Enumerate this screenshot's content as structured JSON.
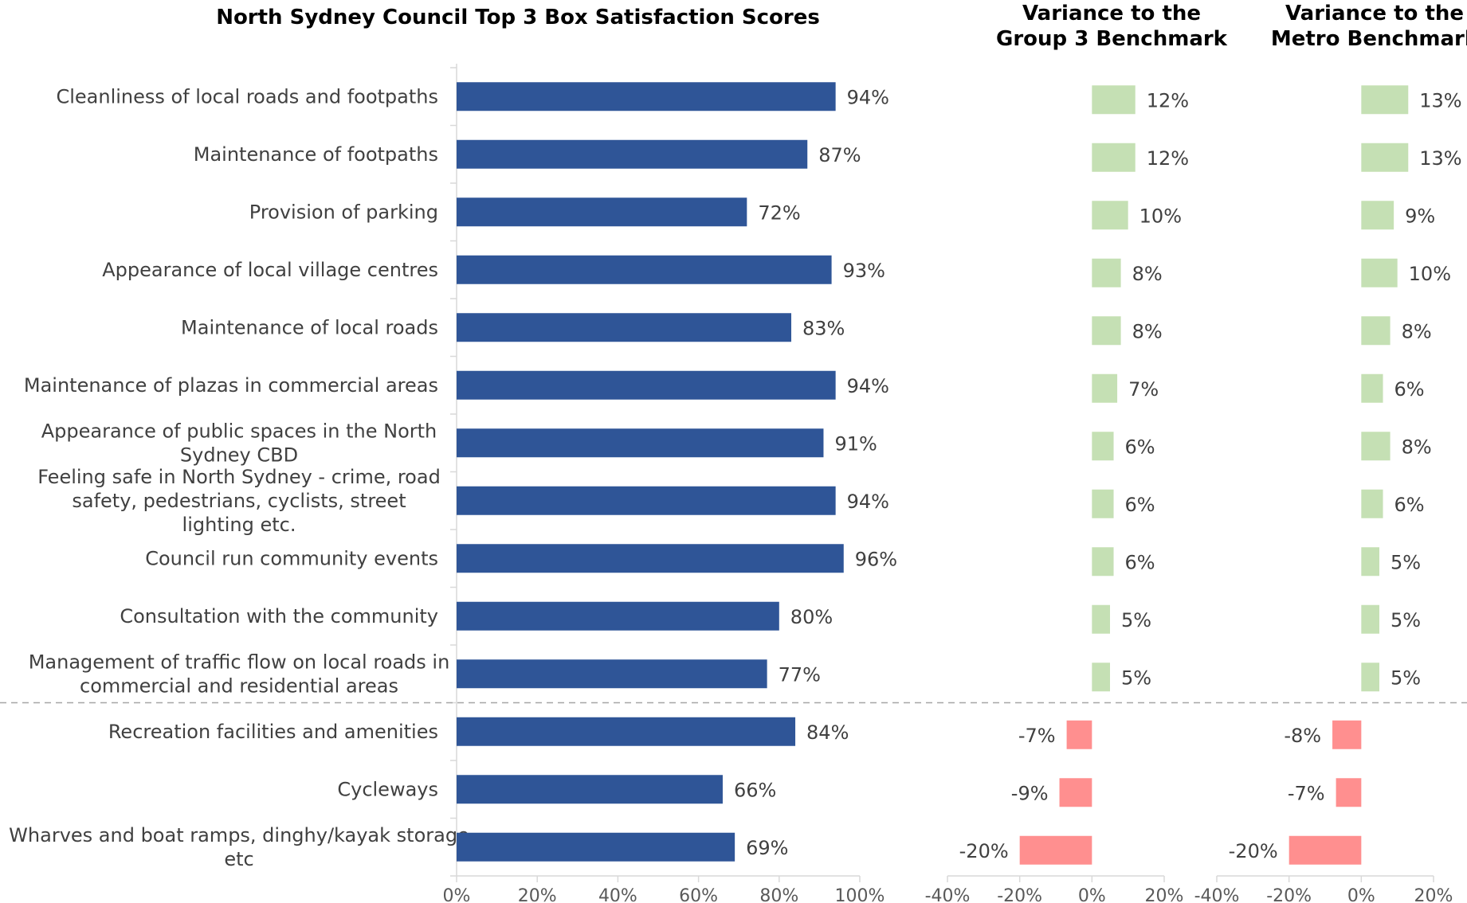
{
  "chart_data": [
    {
      "type": "bar",
      "orientation": "horizontal",
      "title": "North Sydney Council Top 3 Box Satisfaction Scores",
      "categories": [
        "Cleanliness of local roads and footpaths",
        "Maintenance of footpaths",
        "Provision of parking",
        "Appearance of local village centres",
        "Maintenance of local roads",
        "Maintenance of plazas in commercial areas",
        "Appearance of public spaces in the North Sydney CBD",
        "Feeling safe in North Sydney - crime, road safety, pedestrians, cyclists, street lighting etc.",
        "Council run community events",
        "Consultation with the community",
        "Management of traffic flow on local roads in commercial and residential areas",
        "Recreation facilities and amenities",
        "Cycleways",
        "Wharves and boat ramps, dinghy/kayak storage etc"
      ],
      "values": [
        94,
        87,
        72,
        93,
        83,
        94,
        91,
        94,
        96,
        80,
        77,
        84,
        66,
        69
      ],
      "value_labels": [
        "94%",
        "87%",
        "72%",
        "93%",
        "83%",
        "94%",
        "91%",
        "94%",
        "96%",
        "80%",
        "77%",
        "84%",
        "66%",
        "69%"
      ],
      "xlim": [
        0,
        100
      ],
      "xticks": [
        "0%",
        "20%",
        "40%",
        "60%",
        "80%",
        "100%"
      ],
      "bar_color": "#2F5597",
      "group_divider_after_index": 10
    },
    {
      "type": "bar",
      "orientation": "horizontal",
      "title": "Variance to the Group 3 Benchmark",
      "values": [
        12,
        12,
        10,
        8,
        8,
        7,
        6,
        6,
        6,
        5,
        5,
        -7,
        -9,
        -20
      ],
      "value_labels": [
        "12%",
        "12%",
        "10%",
        "8%",
        "8%",
        "7%",
        "6%",
        "6%",
        "6%",
        "5%",
        "5%",
        "-7%",
        "-9%",
        "-20%"
      ],
      "xlim": [
        -40,
        20
      ],
      "xticks": [
        "-40%",
        "-20%",
        "0%",
        "20%"
      ],
      "positive_color": "#C5E0B4",
      "negative_color": "#FF8F8F"
    },
    {
      "type": "bar",
      "orientation": "horizontal",
      "title": "Variance to the Metro Benchmark",
      "values": [
        13,
        13,
        9,
        10,
        8,
        6,
        8,
        6,
        5,
        5,
        5,
        -8,
        -7,
        -20
      ],
      "value_labels": [
        "13%",
        "13%",
        "9%",
        "10%",
        "8%",
        "6%",
        "8%",
        "6%",
        "5%",
        "5%",
        "5%",
        "-8%",
        "-7%",
        "-20%"
      ],
      "xlim": [
        -40,
        20
      ],
      "xticks": [
        "-40%",
        "-20%",
        "0%",
        "20%"
      ],
      "positive_color": "#C5E0B4",
      "negative_color": "#FF8F8F"
    }
  ]
}
